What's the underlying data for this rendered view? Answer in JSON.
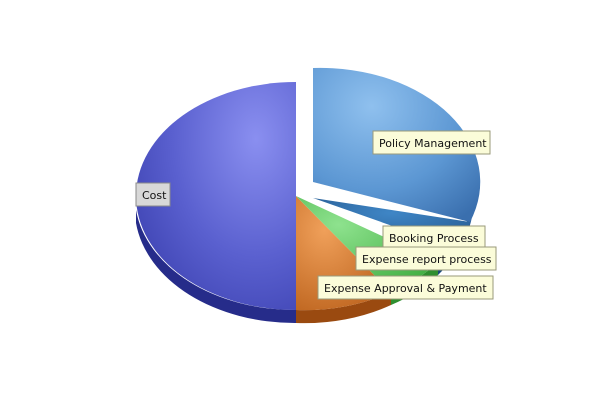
{
  "chart_data": {
    "type": "pie",
    "style": "3d-exploded",
    "title": "",
    "slices": [
      {
        "label": "Policy Management",
        "value": 31,
        "color": "#5f9ad6"
      },
      {
        "label": "Booking Process",
        "value": 1,
        "color": "#2f6fa8"
      },
      {
        "label": "Expense report process",
        "value": 8,
        "color": "#5cc75c"
      },
      {
        "label": "Expense Approval & Payment",
        "value": 10,
        "color": "#d9782a"
      },
      {
        "label": "Cost",
        "value": 50,
        "color": "#5b60cc"
      }
    ]
  }
}
